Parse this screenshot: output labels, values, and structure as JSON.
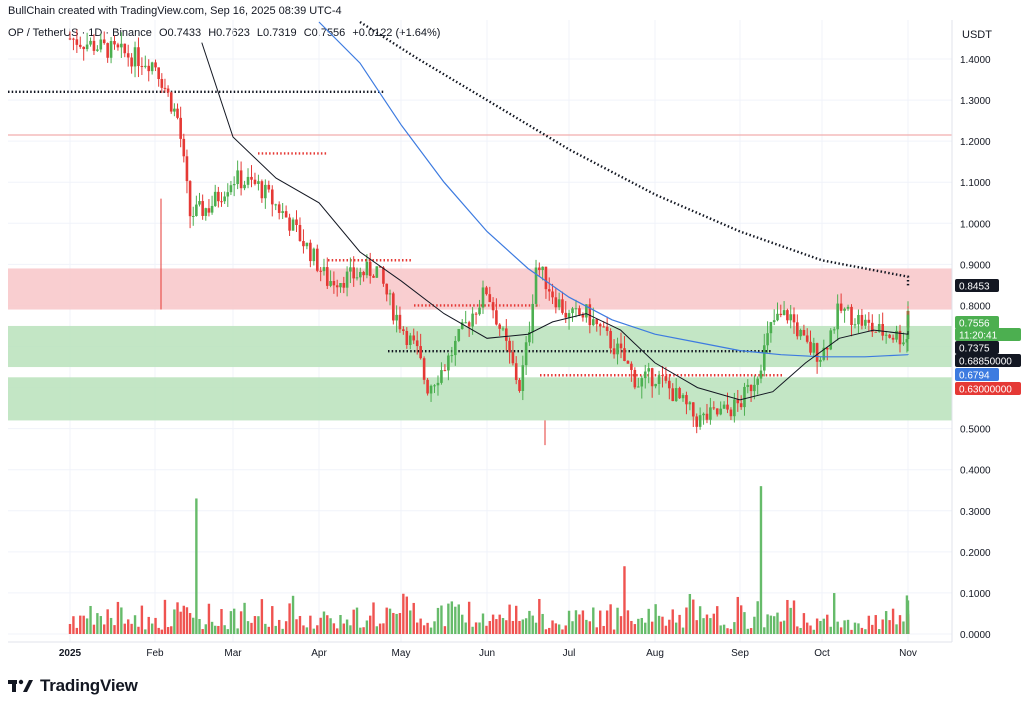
{
  "header": {
    "created_by": "BullChain created with TradingView.com, Sep 16, 2025 08:39 UTC-4",
    "symbol": "OP / TetherUS · 1D · Binance",
    "open": "O0.7433",
    "high": "H0.7623",
    "low": "L0.7319",
    "close": "C0.7556",
    "change": "+0.0122 (+1.64%)"
  },
  "currency": "USDT",
  "brand": "TradingView",
  "colors": {
    "up": "#4caf50",
    "down": "#e53935",
    "vol_up": "#66bb6a",
    "vol_down": "#ef5350",
    "resistance_zone": "#f8c5c8",
    "support_zone": "#b9e2bb",
    "ma_black": "#131722",
    "ma_blue": "#3d7be0"
  },
  "chart_data": {
    "type": "candlestick",
    "price_axis_ticks": [
      "1.4000",
      "1.3000",
      "1.2000",
      "1.1000",
      "1.0000",
      "0.9000",
      "0.8000",
      "0.7000",
      "0.6000",
      "0.5000",
      "0.4000",
      "0.3000",
      "0.2000",
      "0.1000",
      "0.0000"
    ],
    "price_tick_values": [
      1.4,
      1.3,
      1.2,
      1.1,
      1.0,
      0.9,
      0.8,
      0.7,
      0.6,
      0.5,
      0.4,
      0.3,
      0.2,
      0.1,
      0.0
    ],
    "time_axis_ticks": [
      "2025",
      "Feb",
      "Mar",
      "Apr",
      "May",
      "Jun",
      "Jul",
      "Aug",
      "Sep",
      "Oct",
      "Nov"
    ],
    "price_range": [
      0.0,
      1.47
    ],
    "zones": [
      {
        "name": "resistance",
        "from": 0.79,
        "to": 0.89,
        "color": "#f8c5c8"
      },
      {
        "name": "support-upper",
        "from": 0.65,
        "to": 0.75,
        "color": "#b9e2bb"
      },
      {
        "name": "support-lower",
        "from": 0.52,
        "to": 0.625,
        "color": "#b9e2bb"
      }
    ],
    "horizontal_levels": [
      {
        "price": 1.32,
        "style": "dotted-black",
        "from": "2025",
        "to": "May"
      },
      {
        "price": 1.215,
        "style": "thin-red",
        "from": "2025",
        "to": "Nov+"
      },
      {
        "price": 1.17,
        "style": "dotted-red",
        "from": "Mar",
        "to": "Apr"
      },
      {
        "price": 0.91,
        "style": "dotted-red",
        "from": "Apr",
        "to": "May"
      },
      {
        "price": 0.8,
        "style": "dotted-red",
        "from": "May",
        "to": "Jun"
      },
      {
        "price": 0.6885,
        "style": "dotted-black",
        "from": "May",
        "to": "Sep"
      },
      {
        "price": 0.63,
        "style": "dotted-red",
        "from": "Jul",
        "to": "Sep"
      }
    ],
    "price_tags": [
      {
        "label": "0.8453",
        "price": 0.8453,
        "color": "#131722"
      },
      {
        "label": "0.7556",
        "price": 0.7556,
        "color": "#4caf50"
      },
      {
        "label": "11:20:41",
        "price": 0.7267,
        "color": "#4caf50"
      },
      {
        "label": "0.7375",
        "price": 0.7375,
        "color": "#131722"
      },
      {
        "label": "0.68850000",
        "price": 0.6885,
        "color": "#131722"
      },
      {
        "label": "0.6794",
        "price": 0.6794,
        "color": "#3d7be0"
      },
      {
        "label": "0.63000000",
        "price": 0.63,
        "color": "#e53935"
      }
    ],
    "price_keypoints": [
      [
        0,
        1.45
      ],
      [
        0.5,
        1.42
      ],
      [
        1,
        1.39
      ],
      [
        1.3,
        1.25
      ],
      [
        1.45,
        1.02
      ],
      [
        1.7,
        1.04
      ],
      [
        2,
        1.11
      ],
      [
        2.3,
        1.09
      ],
      [
        2.6,
        1.02
      ],
      [
        2.9,
        0.93
      ],
      [
        3.1,
        0.86
      ],
      [
        3.4,
        0.87
      ],
      [
        3.7,
        0.89
      ],
      [
        3.9,
        0.79
      ],
      [
        4.2,
        0.68
      ],
      [
        4.3,
        0.6
      ],
      [
        4.5,
        0.65
      ],
      [
        4.8,
        0.77
      ],
      [
        5.0,
        0.84
      ],
      [
        5.2,
        0.72
      ],
      [
        5.4,
        0.6
      ],
      [
        5.5,
        0.72
      ],
      [
        5.6,
        0.9
      ],
      [
        5.8,
        0.83
      ],
      [
        6.0,
        0.77
      ],
      [
        6.2,
        0.78
      ],
      [
        6.4,
        0.73
      ],
      [
        6.6,
        0.68
      ],
      [
        6.8,
        0.61
      ],
      [
        7.0,
        0.63
      ],
      [
        7.2,
        0.59
      ],
      [
        7.5,
        0.52
      ],
      [
        7.8,
        0.54
      ],
      [
        8.0,
        0.56
      ],
      [
        8.2,
        0.63
      ],
      [
        8.4,
        0.76
      ],
      [
        8.6,
        0.78
      ],
      [
        8.8,
        0.7
      ],
      [
        9.0,
        0.68
      ],
      [
        9.2,
        0.79
      ],
      [
        9.4,
        0.77
      ],
      [
        9.6,
        0.74
      ],
      [
        9.8,
        0.73
      ],
      [
        10.0,
        0.72
      ],
      [
        10.2,
        0.78
      ],
      [
        10.35,
        0.7556
      ]
    ],
    "ma_black_dotted": [
      [
        3.5,
        1.49
      ],
      [
        4.2,
        1.4
      ],
      [
        5.0,
        1.3
      ],
      [
        6.0,
        1.18
      ],
      [
        7.0,
        1.07
      ],
      [
        8.0,
        0.98
      ],
      [
        9.0,
        0.91
      ],
      [
        10.0,
        0.87
      ],
      [
        10.4,
        0.8453
      ]
    ],
    "ma_blue": [
      [
        3.0,
        1.49
      ],
      [
        3.5,
        1.39
      ],
      [
        4.0,
        1.24
      ],
      [
        4.5,
        1.1
      ],
      [
        5.0,
        0.98
      ],
      [
        5.5,
        0.89
      ],
      [
        6.0,
        0.82
      ],
      [
        6.5,
        0.765
      ],
      [
        7.0,
        0.73
      ],
      [
        7.5,
        0.71
      ],
      [
        8.0,
        0.69
      ],
      [
        8.5,
        0.68
      ],
      [
        9.0,
        0.675
      ],
      [
        9.5,
        0.675
      ],
      [
        10.0,
        0.68
      ],
      [
        10.4,
        0.6794
      ]
    ],
    "ma_black": [
      [
        1.6,
        1.44
      ],
      [
        2.0,
        1.21
      ],
      [
        2.5,
        1.11
      ],
      [
        3.0,
        1.05
      ],
      [
        3.5,
        0.93
      ],
      [
        4.0,
        0.86
      ],
      [
        4.5,
        0.78
      ],
      [
        5.0,
        0.72
      ],
      [
        5.5,
        0.73
      ],
      [
        5.8,
        0.76
      ],
      [
        6.2,
        0.78
      ],
      [
        6.6,
        0.74
      ],
      [
        7.0,
        0.66
      ],
      [
        7.5,
        0.6
      ],
      [
        8.0,
        0.57
      ],
      [
        8.4,
        0.59
      ],
      [
        8.8,
        0.66
      ],
      [
        9.2,
        0.72
      ],
      [
        9.6,
        0.74
      ],
      [
        10.0,
        0.73
      ],
      [
        10.4,
        0.7375
      ]
    ],
    "volume_spikes": [
      {
        "day_frac": 1.55,
        "value": 0.33,
        "color": "up"
      },
      {
        "day_frac": 8.25,
        "value": 0.36,
        "color": "up"
      },
      {
        "day_frac": 6.65,
        "value": 0.165,
        "color": "down"
      }
    ],
    "volume_base_range": [
      0.01,
      0.1
    ]
  }
}
